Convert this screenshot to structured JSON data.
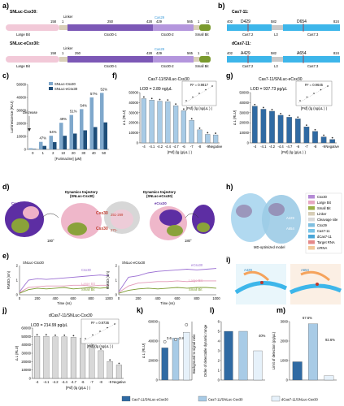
{
  "panels": {
    "a": {
      "label": "a)",
      "row1": {
        "name": "SNLuc-Csx30:",
        "n158": "158",
        "n1": "1",
        "linker": "Linker",
        "n250": "250",
        "n428": "428",
        "n429": "429",
        "cap": "Cas29",
        "n565": "565",
        "n11a": "1",
        "n11b": "11",
        "large": "Large Bit",
        "csx": "Csx30-1",
        "csx2": "Csx30-2",
        "small": "Small Bit"
      },
      "row2": {
        "name": "SNLuc-eCsx30:",
        "n158": "158",
        "n1": "1",
        "linker": "Linker",
        "n250": "250",
        "n428": "428",
        "n429": "429",
        "cap": "Cas29",
        "n565": "565",
        "n11a": "1",
        "n11b": "11",
        "large": "Large Bit",
        "csx": "Csx30-1",
        "csx2": "Csx30-2",
        "small": "Small Bit"
      }
    },
    "b": {
      "label": "b)",
      "row1": {
        "name": "Cas7-11:",
        "n402": "402",
        "mut1": "D429",
        "n582": "582",
        "mut2": "D654",
        "n824": "824",
        "seg1": "Cas7.2",
        "seg2": "L3",
        "seg3": "Cas7.3"
      },
      "row2": {
        "name": "dCas7-11:",
        "n402": "402",
        "mut1": "A429",
        "n582": "582",
        "mut2": "A654",
        "n824": "824",
        "seg1": "Cas7.2",
        "seg2": "L3",
        "seg3": "Cas7.3"
      }
    },
    "c": {
      "label": "c)",
      "decrease": "Decrease",
      "pcts": [
        "47%",
        "54%",
        "49%",
        "51%",
        "54%",
        "57%",
        "52%"
      ]
    },
    "d": {
      "label": "d)",
      "traj1": "Dynamics trajectory",
      "traj1b": "(SNLuc-Csx30)",
      "traj2": "Dynamics trajectory",
      "traj2b": "(SNLuc-eCsx30)",
      "csx": "Csx30",
      "csx30a": "Csx30",
      "csx30a_sub": "251-269",
      "csx30b": "Csx30",
      "csx30b_sub": "271-",
      "ecsx": "eCsx30",
      "rot1": "180°",
      "rot2": "180°"
    },
    "e": {
      "label": "e)",
      "left_title": "SNLuc-Csx30",
      "right_title": "SNLuc-eCsx30",
      "ylabel": "RMSD (nm)",
      "xlabel": "Time (ns)",
      "leg_csx": "Csx30",
      "leg_lb": "Large Bit",
      "leg_sb": "Small Bit",
      "leg_ecsx": "eCsx30"
    },
    "f": {
      "label": "f)",
      "title": "Cas7-11/SNLuc-Csx30",
      "lod": "LOD = 2.89 ng/μL",
      "r2": "R² = 0.9817"
    },
    "g": {
      "label": "g)",
      "title": "Cas7-11/SNLuc-eCsx30",
      "lod": "LOD = 937.73 pg/μL",
      "r2": "R² = 0.9645"
    },
    "h": {
      "label": "h)",
      "model": "MD-optimized model",
      "a429": "A429",
      "a654": "A654",
      "legend": [
        "Csx30",
        "Large Bit",
        "Small Bit",
        "Linker",
        "Cleavage site",
        "Csx29",
        "Cas7-11",
        "dCas7-11",
        "Target RNA",
        "crRNA"
      ],
      "legend_colors": [
        "#b58ad6",
        "#e7a7c2",
        "#9bb04a",
        "#d6cdb6",
        "#d9d9d9",
        "#7fbfe0",
        "#78c4e8",
        "#4aa6d8",
        "#e58a8a",
        "#f0c89a"
      ]
    },
    "i": {
      "label": "i)",
      "a429": "A429",
      "a654": "A654"
    },
    "j": {
      "label": "j)",
      "title": "dCas7-11/SNLuc-Csx30",
      "lod": "LOD = 214.99 pg/μL",
      "r2": "R² = 0.9736"
    },
    "k": {
      "label": "k)",
      "ann1": "3.6",
      "ann2": "3.8",
      "ylabel2": "Background to signal ratio"
    },
    "l": {
      "label": "l)",
      "ylabel": "Order of detectable dynamic range",
      "ann": "40%"
    },
    "m": {
      "label": "m)",
      "ylabel": "Limit of detection (pg/μL)",
      "ann1": "67.6%",
      "ann2": "92.6%"
    },
    "bottom_legend": [
      "Cas7-11/SNLuc-eCsx30",
      "Cas7-11/SNLuc-Csx30",
      "dCas7-11/SNLuc-Csx30"
    ]
  },
  "chart_data": [
    {
      "panel": "c",
      "type": "bar",
      "categories": [
        "0",
        "1",
        "2",
        "10",
        "20",
        "30",
        "40",
        "50"
      ],
      "xlabel": "[Furimazine] (μM)",
      "ylabel": "Luminescence (RLU)",
      "ylim": [
        0,
        50000
      ],
      "yticks": [
        "0",
        "10000",
        "20000",
        "30000",
        "40000",
        "50000"
      ],
      "series": [
        {
          "name": "SNLuc-Csx30",
          "color": "#7fa8cc",
          "values": [
            900,
            5800,
            10500,
            20500,
            26500,
            31000,
            40000,
            43500
          ]
        },
        {
          "name": "SNLuc-eCsx30",
          "color": "#1f4e79",
          "values": [
            400,
            2700,
            5600,
            10500,
            12200,
            14700,
            17200,
            20800
          ]
        }
      ]
    },
    {
      "panel": "f",
      "type": "bar",
      "categories": [
        "-4",
        "-4.1",
        "-4.2",
        "-4.4",
        "-4.7",
        "-6",
        "-7",
        "-8",
        "-9",
        "Negative"
      ],
      "xlabel": "[Psf] (lg (g/μL ) )",
      "ylabel": "Δ L (RLU)",
      "ylim": [
        0,
        50000
      ],
      "yticks": [
        "0",
        "10000",
        "20000",
        "30000",
        "40000",
        "50000"
      ],
      "color": "#a8cbe6",
      "values": [
        44000,
        42500,
        41500,
        41000,
        37000,
        32000,
        22500,
        13000,
        8500,
        8000
      ],
      "inset": {
        "xlabel": "[Psf] (lg (ng/μL ) )",
        "ylabel": "Δ L (RLU)",
        "r2": "0.9817"
      }
    },
    {
      "panel": "g",
      "type": "bar",
      "categories": [
        "-4",
        "-4.1",
        "-4.2",
        "-4.4",
        "-4.7",
        "-6",
        "-7",
        "-8",
        "-9",
        "Negative"
      ],
      "xlabel": "[Psf] (lg (g/μL ) )",
      "ylabel": "Δ L (RLU)",
      "ylim": [
        0,
        50000
      ],
      "yticks": [
        "0",
        "10000",
        "20000",
        "30000",
        "40000",
        "50000"
      ],
      "color": "#2f6aa3",
      "values": [
        36500,
        33500,
        31500,
        27500,
        25500,
        24000,
        16000,
        11500,
        6000,
        3500
      ],
      "inset": {
        "xlabel": "[Psf] (lg (ng/μL ) )",
        "ylabel": "Δ L (RLU)",
        "r2": "0.9645"
      }
    },
    {
      "panel": "e-left",
      "type": "line",
      "xlabel": "Time (ns)",
      "ylabel": "RMSD (nm)",
      "xlim": [
        0,
        1000
      ],
      "ylim": [
        0,
        2
      ],
      "xticks": [
        "0",
        "200",
        "400",
        "600",
        "800",
        "1000"
      ],
      "yticks": [
        "0",
        "1",
        "2"
      ],
      "series": [
        {
          "name": "Csx30",
          "color": "#9b6fd3",
          "x": [
            0,
            100,
            200,
            300,
            400,
            500,
            600,
            700,
            800,
            900,
            1000
          ],
          "y": [
            0.2,
            1.0,
            1.1,
            1.05,
            1.1,
            1.15,
            1.2,
            1.25,
            1.3,
            1.35,
            1.3
          ]
        },
        {
          "name": "Large Bit",
          "color": "#e39ab8",
          "x": [
            0,
            100,
            200,
            300,
            400,
            500,
            600,
            700,
            800,
            900,
            1000
          ],
          "y": [
            0.15,
            0.5,
            0.55,
            0.6,
            0.6,
            0.6,
            0.65,
            0.65,
            0.6,
            0.65,
            0.65
          ]
        },
        {
          "name": "Small Bit",
          "color": "#7a9a2e",
          "x": [
            0,
            100,
            200,
            300,
            400,
            500,
            600,
            700,
            800,
            900,
            1000
          ],
          "y": [
            0.1,
            0.35,
            0.45,
            0.4,
            0.45,
            0.5,
            0.4,
            0.45,
            0.5,
            0.45,
            0.5
          ]
        }
      ]
    },
    {
      "panel": "e-right",
      "type": "line",
      "xlabel": "Time (ns)",
      "ylabel": "RMSD (nm)",
      "xlim": [
        0,
        1000
      ],
      "ylim": [
        0,
        2
      ],
      "xticks": [
        "0",
        "200",
        "400",
        "600",
        "800",
        "1000"
      ],
      "yticks": [
        "0",
        "1",
        "2"
      ],
      "series": [
        {
          "name": "eCsx30",
          "color": "#9b6fd3",
          "x": [
            0,
            100,
            200,
            300,
            400,
            500,
            600,
            700,
            800,
            900,
            1000
          ],
          "y": [
            0.2,
            1.2,
            1.3,
            1.5,
            1.6,
            1.65,
            1.7,
            1.75,
            1.7,
            1.75,
            1.8
          ]
        },
        {
          "name": "Large Bit",
          "color": "#e39ab8",
          "x": [
            0,
            100,
            200,
            300,
            400,
            500,
            600,
            700,
            800,
            900,
            1000
          ],
          "y": [
            0.15,
            0.6,
            0.8,
            0.85,
            0.9,
            0.9,
            0.95,
            0.9,
            0.95,
            0.95,
            0.95
          ]
        },
        {
          "name": "Small Bit",
          "color": "#7a9a2e",
          "x": [
            0,
            100,
            200,
            300,
            400,
            500,
            600,
            700,
            800,
            900,
            1000
          ],
          "y": [
            0.1,
            0.3,
            0.4,
            0.45,
            0.4,
            0.45,
            0.5,
            0.45,
            0.5,
            0.5,
            0.45
          ]
        }
      ]
    },
    {
      "panel": "j",
      "type": "bar",
      "categories": [
        "-4",
        "-4.1",
        "-4.2",
        "-4.4",
        "-4.7",
        "-6",
        "-7",
        "-8",
        "-9",
        "Negative"
      ],
      "xlabel": "[Psf] (lg (g/μL ) )",
      "ylabel": "Δ L (RLU)",
      "ylim": [
        0,
        60000
      ],
      "yticks": [
        "0",
        "10000",
        "20000",
        "30000",
        "40000",
        "50000",
        "60000"
      ],
      "color": "#d8d8d8",
      "values": [
        50000,
        50000,
        49500,
        49500,
        49000,
        48000,
        40000,
        33000,
        20000,
        16000
      ],
      "inset": {
        "xlabel": "[Psf] (lg (ng/μL ) )",
        "ylabel": "Δ L (RLU)",
        "r2": "0.9736"
      }
    },
    {
      "panel": "k",
      "type": "bar",
      "categories": [
        "Cas7-11/SNLuc-eCsx30",
        "Cas7-11/SNLuc-Csx30",
        "dCas7-11/SNLuc-Csx30"
      ],
      "ylabel": "Δ L (RLU)",
      "ylim": [
        0,
        60000
      ],
      "yticks": [
        "0",
        "20000",
        "40000",
        "60000"
      ],
      "colors": [
        "#2f6aa3",
        "#a8cbe6",
        "#e6f1fa"
      ],
      "values": [
        33000,
        43000,
        49000
      ],
      "ratio": {
        "ylabel": "Background to signal ratio",
        "ylim": [
          0,
          5.5
        ],
        "values": [
          3.6,
          3.8,
          5.2
        ]
      }
    },
    {
      "panel": "l",
      "type": "bar",
      "categories": [
        "Cas7-11/SNLuc-eCsx30",
        "Cas7-11/SNLuc-Csx30",
        "dCas7-11/SNLuc-Csx30"
      ],
      "ylabel": "Order of detectable dynamic range",
      "ylim": [
        0,
        6
      ],
      "yticks": [
        "0",
        "1",
        "2",
        "3",
        "4",
        "5",
        "6"
      ],
      "colors": [
        "#2f6aa3",
        "#a8cbe6",
        "#e6f1fa"
      ],
      "values": [
        5,
        5,
        3
      ]
    },
    {
      "panel": "m",
      "type": "bar",
      "categories": [
        "Cas7-11/SNLuc-eCsx30",
        "Cas7-11/SNLuc-Csx30",
        "dCas7-11/SNLuc-Csx30"
      ],
      "ylabel": "Limit of detection (pg/μL)",
      "ylim": [
        0,
        3000
      ],
      "yticks": [
        "0",
        "1000",
        "2000",
        "3000"
      ],
      "colors": [
        "#2f6aa3",
        "#a8cbe6",
        "#e6f1fa"
      ],
      "values": [
        937.73,
        2890,
        214.99
      ]
    }
  ]
}
